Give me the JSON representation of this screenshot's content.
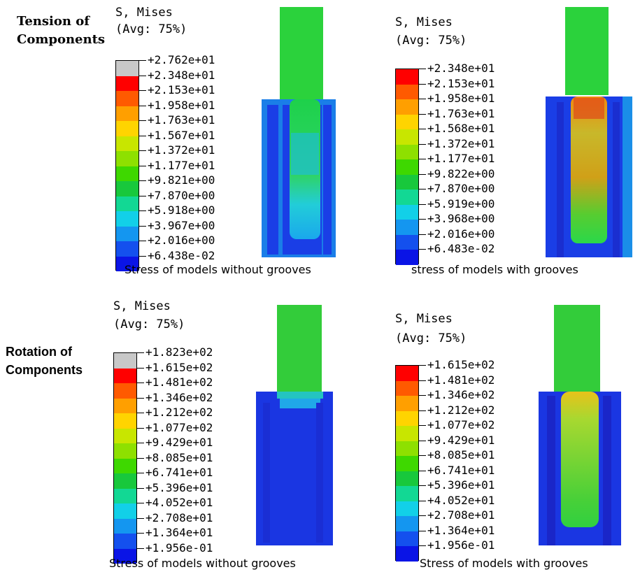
{
  "row_labels": {
    "tension": [
      "Tension of",
      "Components"
    ],
    "rotation": [
      "Rotation of",
      "Components"
    ]
  },
  "panels": [
    {
      "title_line1": "S, Mises",
      "title_line2": "(Avg: 75%)",
      "labels": [
        "+2.762e+01",
        "+2.348e+01",
        "+2.153e+01",
        "+1.958e+01",
        "+1.763e+01",
        "+1.567e+01",
        "+1.372e+01",
        "+1.177e+01",
        "+9.821e+00",
        "+7.870e+00",
        "+5.918e+00",
        "+3.967e+00",
        "+2.016e+00",
        "+6.438e-02"
      ],
      "colors": [
        "#c8c8c8",
        "#ff0000",
        "#ff5a00",
        "#ff9f00",
        "#ffd400",
        "#c8e600",
        "#8ee000",
        "#3ed800",
        "#18c83c",
        "#12d894",
        "#12d0e8",
        "#1496f0",
        "#1450ee",
        "#0a14e6"
      ],
      "caption": "Stress of models without grooves"
    },
    {
      "title_line1": "S, Mises",
      "title_line2": "(Avg: 75%)",
      "labels": [
        "+2.348e+01",
        "+2.153e+01",
        "+1.958e+01",
        "+1.763e+01",
        "+1.568e+01",
        "+1.372e+01",
        "+1.177e+01",
        "+9.822e+00",
        "+7.870e+00",
        "+5.919e+00",
        "+3.968e+00",
        "+2.016e+00",
        "+6.483e-02"
      ],
      "colors": [
        "#ff0000",
        "#ff5a00",
        "#ff9f00",
        "#ffd400",
        "#c8e600",
        "#8ee000",
        "#3ed800",
        "#18c83c",
        "#12d894",
        "#12d0e8",
        "#1496f0",
        "#1450ee",
        "#0a14e6"
      ],
      "caption": "stress of models with grooves"
    },
    {
      "title_line1": "S, Mises",
      "title_line2": "(Avg: 75%)",
      "labels": [
        "+1.823e+02",
        "+1.615e+02",
        "+1.481e+02",
        "+1.346e+02",
        "+1.212e+02",
        "+1.077e+02",
        "+9.429e+01",
        "+8.085e+01",
        "+6.741e+01",
        "+5.396e+01",
        "+4.052e+01",
        "+2.708e+01",
        "+1.364e+01",
        "+1.956e-01"
      ],
      "colors": [
        "#c8c8c8",
        "#ff0000",
        "#ff5a00",
        "#ff9f00",
        "#ffd400",
        "#c8e600",
        "#8ee000",
        "#3ed800",
        "#18c83c",
        "#12d894",
        "#12d0e8",
        "#1496f0",
        "#1450ee",
        "#0a14e6"
      ],
      "caption": "Stress of models without grooves"
    },
    {
      "title_line1": "S, Mises",
      "title_line2": "(Avg: 75%)",
      "labels": [
        "+1.615e+02",
        "+1.481e+02",
        "+1.346e+02",
        "+1.212e+02",
        "+1.077e+02",
        "+9.429e+01",
        "+8.085e+01",
        "+6.741e+01",
        "+5.396e+01",
        "+4.052e+01",
        "+2.708e+01",
        "+1.364e+01",
        "+1.956e-01"
      ],
      "colors": [
        "#ff0000",
        "#ff5a00",
        "#ff9f00",
        "#ffd400",
        "#c8e600",
        "#8ee000",
        "#3ed800",
        "#18c83c",
        "#12d894",
        "#12d0e8",
        "#1496f0",
        "#1450ee",
        "#0a14e6"
      ],
      "caption": "Stress of models with grooves"
    }
  ]
}
